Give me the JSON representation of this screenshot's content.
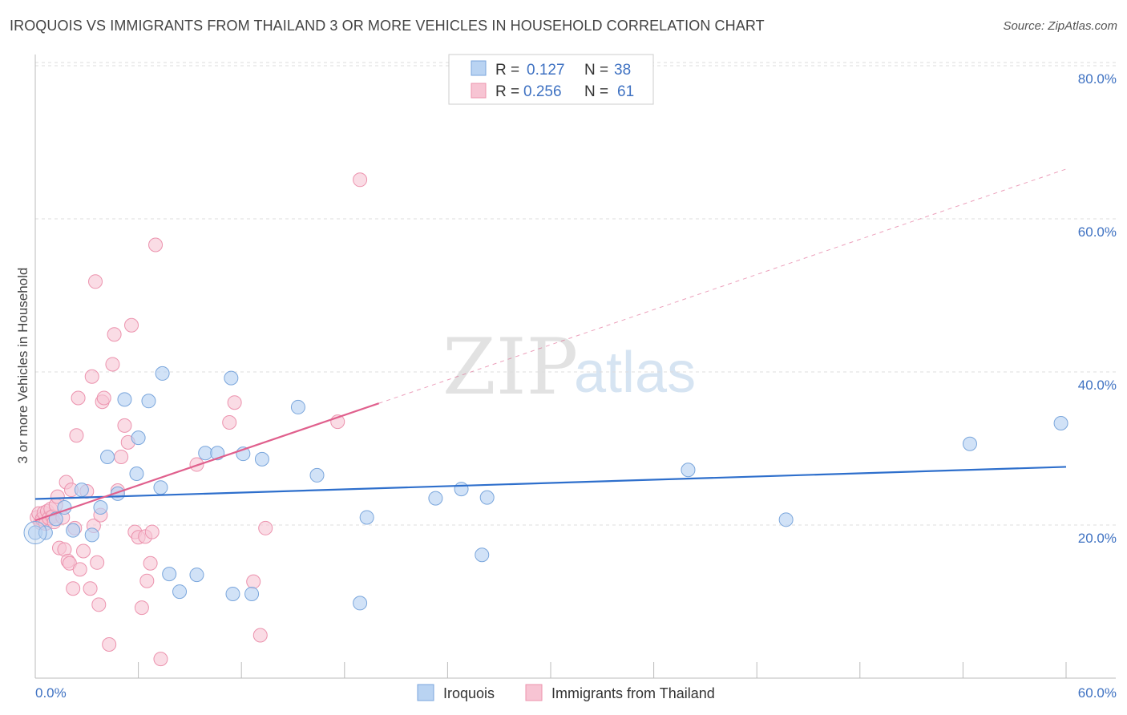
{
  "title": "IROQUOIS VS IMMIGRANTS FROM THAILAND 3 OR MORE VEHICLES IN HOUSEHOLD CORRELATION CHART",
  "source": "Source: ZipAtlas.com",
  "watermark": {
    "zip": "ZIP",
    "atlas": "atlas"
  },
  "colors": {
    "blue_fill": "#b9d3f2",
    "blue_stroke": "#7aa6dc",
    "blue_line": "#2e6fcc",
    "pink_fill": "#f7c4d3",
    "pink_stroke": "#ec93ae",
    "pink_line": "#e0608d",
    "tick_text": "#3f72c2",
    "grid": "#dddddd"
  },
  "legend": {
    "rows": [
      {
        "r_label": "R =",
        "r_value": "0.127",
        "n_label": "N =",
        "n_value": "38"
      },
      {
        "r_label": "R =",
        "r_value": "0.256",
        "n_label": "N =",
        "n_value": "61"
      }
    ]
  },
  "bottom_legend": [
    "Iroquois",
    "Immigrants from Thailand"
  ],
  "chart_data": {
    "type": "scatter",
    "title": "IROQUOIS VS IMMIGRANTS FROM THAILAND 3 OR MORE VEHICLES IN HOUSEHOLD CORRELATION CHART",
    "xlabel": "",
    "ylabel": "3 or more Vehicles in Household",
    "xlim": [
      0,
      60
    ],
    "ylim": [
      0,
      82
    ],
    "x_tick_labels": [
      "0.0%",
      "60.0%"
    ],
    "y_ticks": [
      20,
      40,
      60,
      80
    ],
    "y_tick_labels": [
      "20.0%",
      "40.0%",
      "60.0%",
      "80.0%"
    ],
    "grid": true,
    "series": [
      {
        "name": "Iroquois",
        "R": 0.127,
        "N": 38,
        "trend": {
          "x0": 0,
          "y0": 23.4,
          "x1": 60,
          "y1": 27.6,
          "style": "solid"
        },
        "points": [
          [
            0.0,
            19.0
          ],
          [
            0.6,
            19.0
          ],
          [
            1.2,
            20.8
          ],
          [
            1.7,
            22.3
          ],
          [
            2.2,
            19.3
          ],
          [
            2.7,
            24.6
          ],
          [
            3.3,
            18.7
          ],
          [
            3.8,
            22.3
          ],
          [
            4.2,
            28.9
          ],
          [
            4.8,
            24.1
          ],
          [
            5.2,
            36.4
          ],
          [
            5.9,
            26.7
          ],
          [
            6.0,
            31.4
          ],
          [
            6.6,
            36.2
          ],
          [
            7.3,
            24.9
          ],
          [
            7.4,
            39.8
          ],
          [
            7.8,
            13.6
          ],
          [
            8.4,
            11.3
          ],
          [
            9.4,
            13.5
          ],
          [
            9.9,
            29.4
          ],
          [
            10.6,
            29.4
          ],
          [
            11.4,
            39.2
          ],
          [
            11.5,
            11.0
          ],
          [
            12.1,
            29.3
          ],
          [
            12.6,
            11.0
          ],
          [
            13.2,
            28.6
          ],
          [
            15.3,
            35.4
          ],
          [
            16.4,
            26.5
          ],
          [
            18.9,
            9.8
          ],
          [
            19.3,
            21.0
          ],
          [
            23.3,
            23.5
          ],
          [
            24.8,
            24.7
          ],
          [
            26.0,
            16.1
          ],
          [
            26.3,
            23.6
          ],
          [
            38.0,
            27.2
          ],
          [
            43.7,
            20.7
          ],
          [
            54.4,
            30.6
          ],
          [
            59.7,
            33.3
          ]
        ]
      },
      {
        "name": "Immigrants from Thailand",
        "R": 0.256,
        "N": 61,
        "trend": {
          "x0": 0,
          "y0": 20.6,
          "x1": 20,
          "y1": 35.9,
          "style": "solid",
          "extended": {
            "x1": 60,
            "y1": 66.5,
            "style": "dashed"
          }
        },
        "points": [
          [
            0.1,
            21.0
          ],
          [
            0.2,
            21.5
          ],
          [
            0.3,
            20.3
          ],
          [
            0.4,
            20.8
          ],
          [
            0.5,
            21.6
          ],
          [
            0.6,
            20.2
          ],
          [
            0.7,
            21.8
          ],
          [
            0.8,
            20.9
          ],
          [
            0.9,
            22.1
          ],
          [
            1.0,
            21.1
          ],
          [
            1.1,
            20.4
          ],
          [
            1.2,
            22.6
          ],
          [
            1.3,
            23.7
          ],
          [
            1.4,
            17.0
          ],
          [
            1.6,
            21.0
          ],
          [
            1.7,
            16.8
          ],
          [
            1.8,
            25.6
          ],
          [
            1.9,
            15.3
          ],
          [
            2.0,
            15.0
          ],
          [
            2.1,
            24.6
          ],
          [
            2.2,
            11.7
          ],
          [
            2.3,
            19.6
          ],
          [
            2.4,
            31.7
          ],
          [
            2.5,
            36.6
          ],
          [
            2.6,
            14.2
          ],
          [
            2.8,
            16.6
          ],
          [
            3.0,
            24.4
          ],
          [
            3.2,
            11.7
          ],
          [
            3.3,
            39.4
          ],
          [
            3.4,
            19.9
          ],
          [
            3.5,
            51.8
          ],
          [
            3.6,
            15.1
          ],
          [
            3.7,
            9.6
          ],
          [
            3.8,
            21.3
          ],
          [
            3.9,
            36.1
          ],
          [
            4.0,
            36.6
          ],
          [
            4.3,
            4.4
          ],
          [
            4.5,
            41.0
          ],
          [
            4.6,
            44.9
          ],
          [
            4.8,
            24.5
          ],
          [
            5.0,
            28.9
          ],
          [
            5.2,
            33.0
          ],
          [
            5.4,
            30.8
          ],
          [
            5.6,
            46.1
          ],
          [
            5.8,
            19.1
          ],
          [
            6.0,
            18.4
          ],
          [
            6.2,
            9.2
          ],
          [
            6.4,
            18.5
          ],
          [
            6.5,
            12.7
          ],
          [
            6.7,
            15.0
          ],
          [
            6.8,
            19.1
          ],
          [
            7.0,
            56.6
          ],
          [
            7.3,
            2.5
          ],
          [
            9.4,
            27.9
          ],
          [
            11.3,
            33.4
          ],
          [
            11.6,
            36.0
          ],
          [
            12.7,
            12.6
          ],
          [
            13.1,
            5.6
          ],
          [
            13.4,
            19.6
          ],
          [
            17.6,
            33.5
          ],
          [
            18.9,
            65.1
          ]
        ]
      }
    ]
  }
}
